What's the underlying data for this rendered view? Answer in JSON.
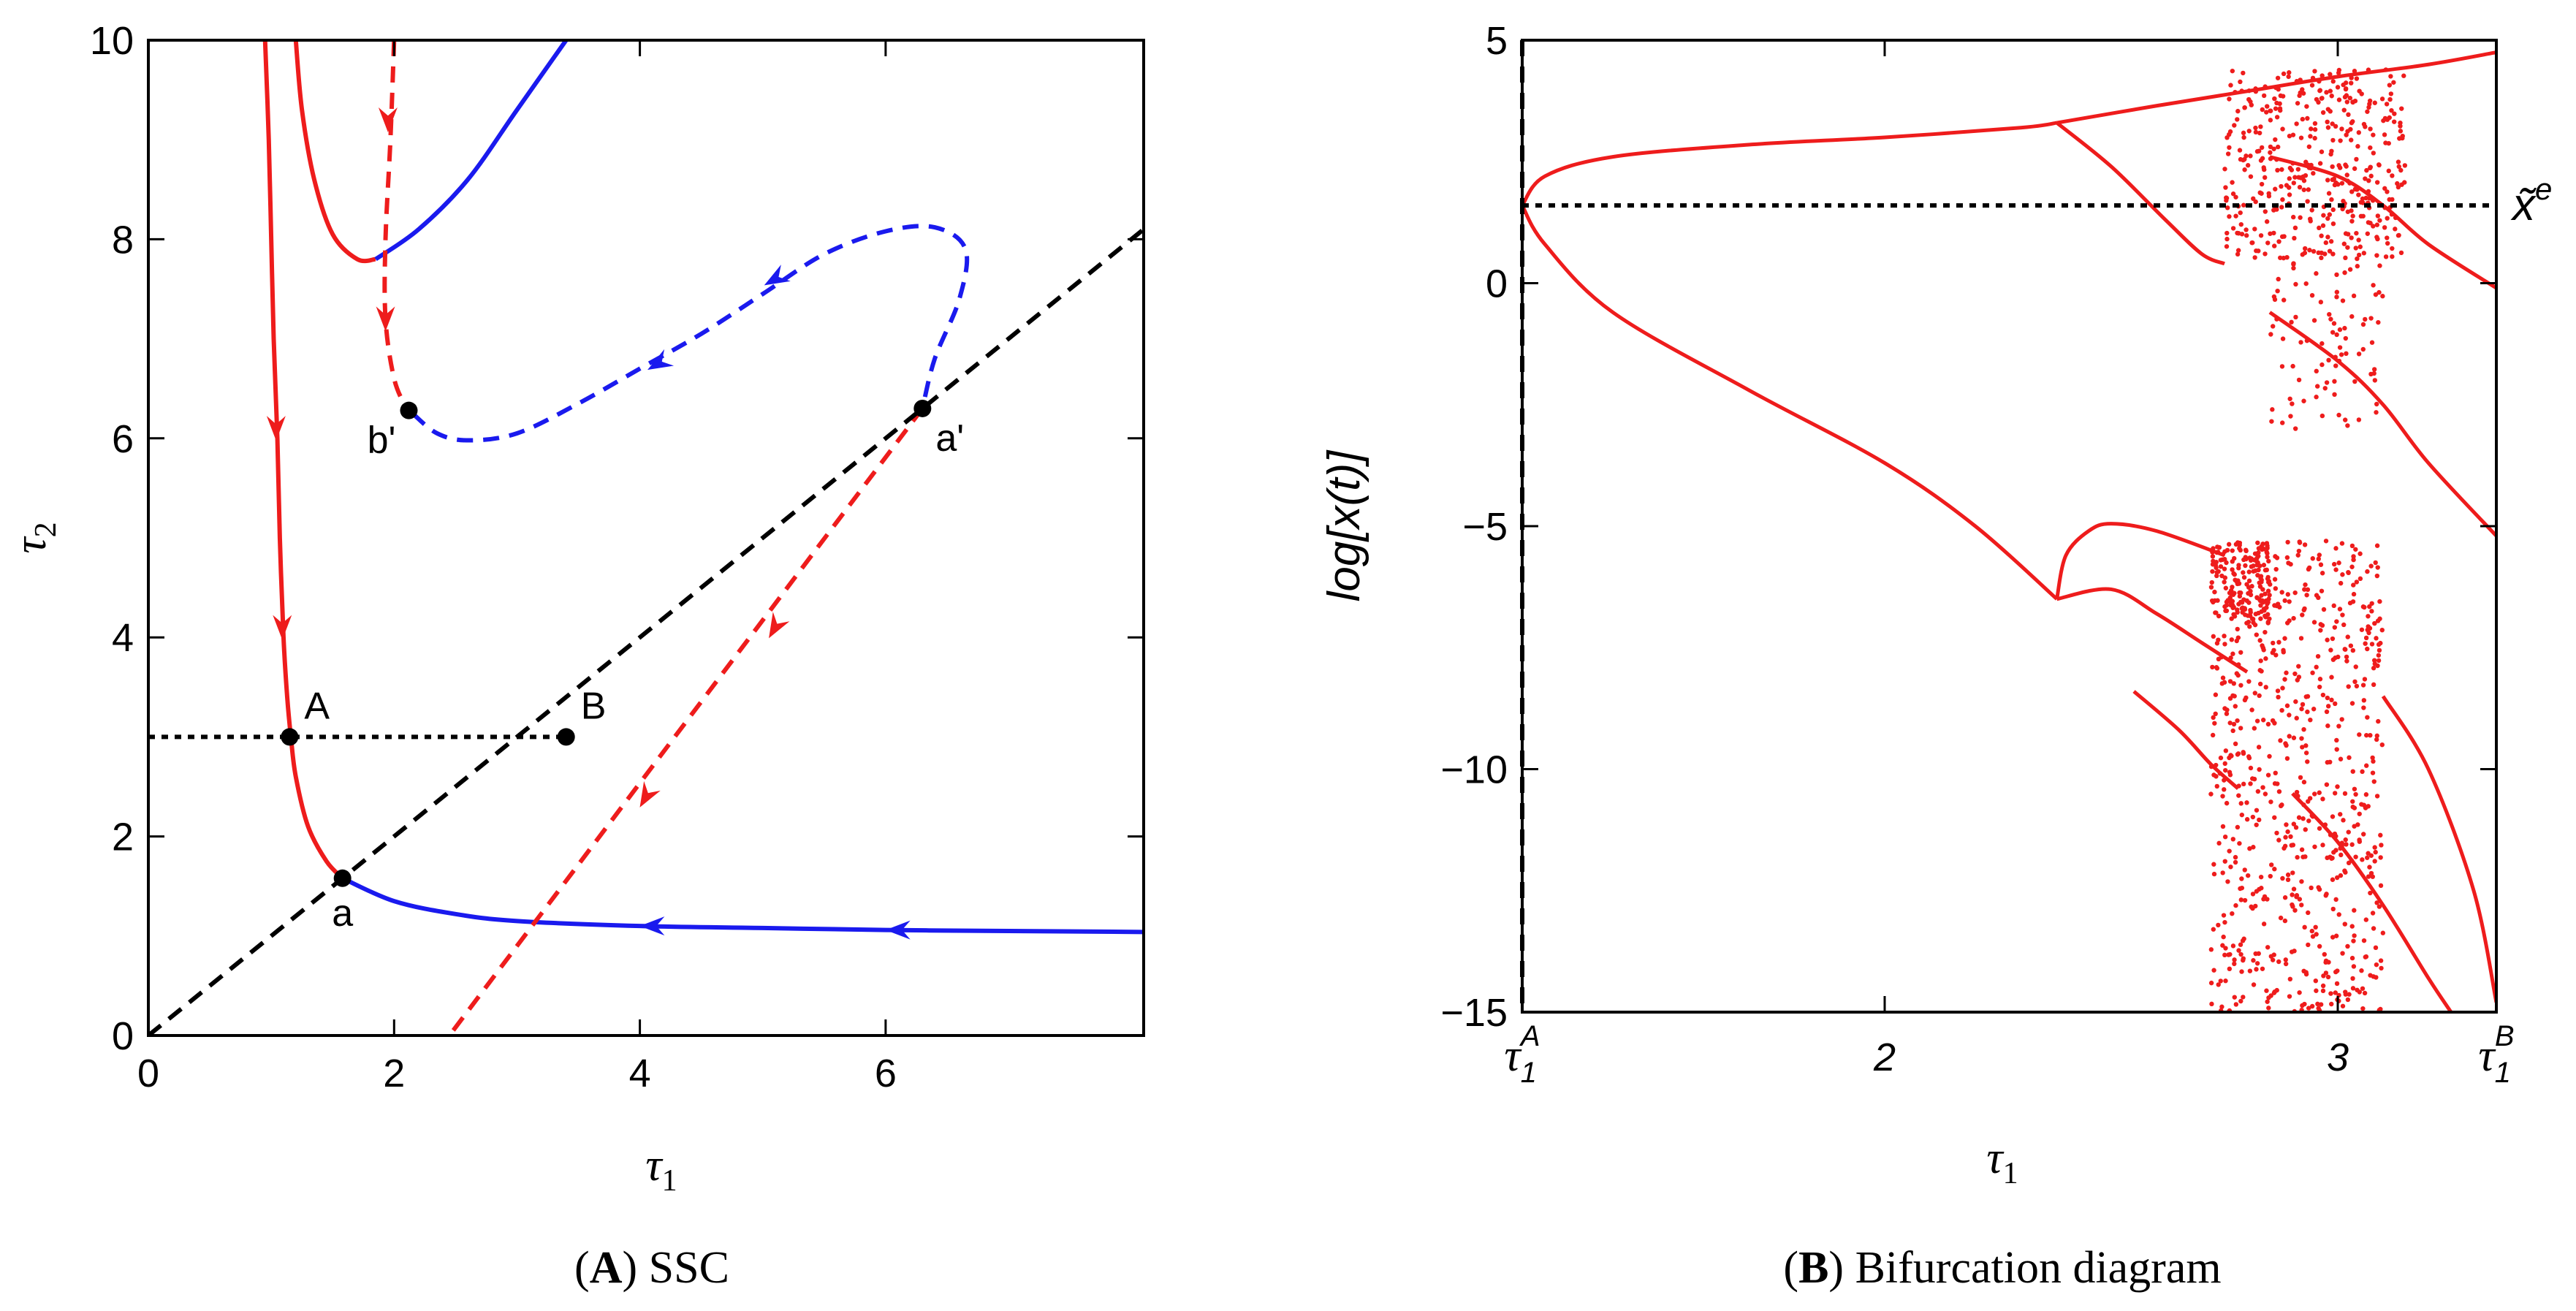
{
  "colors": {
    "red": "#ee1c1c",
    "blue": "#1a1aee",
    "black": "#000000"
  },
  "chart_data": [
    {
      "type": "line",
      "id": "A",
      "caption": {
        "letter": "A",
        "text": "SSC"
      },
      "xlabel": {
        "main": "τ",
        "sub": "1"
      },
      "ylabel": {
        "main": "τ",
        "sub": "2"
      },
      "xlim": [
        0,
        8.1
      ],
      "ylim": [
        0,
        10
      ],
      "xticks": [
        0,
        2,
        4,
        6
      ],
      "yticks": [
        0,
        2,
        4,
        6,
        8,
        10
      ],
      "series": [
        {
          "name": "red-solid-curve",
          "color": "red",
          "dash": "solid",
          "points": [
            [
              0.95,
              10
            ],
            [
              0.98,
              9
            ],
            [
              1.0,
              8
            ],
            [
              1.02,
              7
            ],
            [
              1.05,
              6
            ],
            [
              1.07,
              5
            ],
            [
              1.1,
              4
            ],
            [
              1.13,
              3.4
            ],
            [
              1.16,
              3
            ],
            [
              1.2,
              2.6
            ],
            [
              1.3,
              2.1
            ],
            [
              1.45,
              1.75
            ],
            [
              1.58,
              1.58
            ]
          ]
        },
        {
          "name": "red-solid-upper-curve",
          "color": "red",
          "dash": "solid",
          "points": [
            [
              1.2,
              10
            ],
            [
              1.25,
              9.3
            ],
            [
              1.35,
              8.6
            ],
            [
              1.5,
              8.05
            ],
            [
              1.7,
              7.8
            ],
            [
              1.85,
              7.8
            ]
          ]
        },
        {
          "name": "blue-solid-upper-curve",
          "color": "blue",
          "dash": "solid",
          "points": [
            [
              1.85,
              7.8
            ],
            [
              2.2,
              8.1
            ],
            [
              2.6,
              8.6
            ],
            [
              3.0,
              9.3
            ],
            [
              3.4,
              10
            ]
          ]
        },
        {
          "name": "blue-solid-lower-curve",
          "color": "blue",
          "dash": "solid",
          "points": [
            [
              1.58,
              1.58
            ],
            [
              2,
              1.35
            ],
            [
              2.5,
              1.22
            ],
            [
              3,
              1.15
            ],
            [
              4,
              1.1
            ],
            [
              5,
              1.08
            ],
            [
              6,
              1.06
            ],
            [
              7,
              1.05
            ],
            [
              8.1,
              1.04
            ]
          ]
        },
        {
          "name": "red-dashed-vertical",
          "color": "red",
          "dash": "dashed",
          "points": [
            [
              2.0,
              10
            ],
            [
              1.97,
              9
            ],
            [
              1.93,
              8
            ],
            [
              1.93,
              7.2
            ],
            [
              2.0,
              6.6
            ],
            [
              2.1,
              6.3
            ]
          ]
        },
        {
          "name": "blue-dashed-loop",
          "color": "blue",
          "dash": "dashed",
          "points": [
            [
              2.15,
              6.25
            ],
            [
              2.35,
              6.05
            ],
            [
              2.6,
              5.98
            ],
            [
              3,
              6.05
            ],
            [
              3.5,
              6.35
            ],
            [
              4,
              6.7
            ],
            [
              4.5,
              7.05
            ],
            [
              5,
              7.45
            ],
            [
              5.5,
              7.85
            ],
            [
              6,
              8.08
            ],
            [
              6.4,
              8.12
            ],
            [
              6.65,
              7.9
            ],
            [
              6.6,
              7.4
            ],
            [
              6.4,
              6.8
            ],
            [
              6.3,
              6.3
            ]
          ]
        },
        {
          "name": "red-dashed-diagonal",
          "color": "red",
          "dash": "dashed",
          "points": [
            [
              6.3,
              6.3
            ],
            [
              2.45,
              0
            ]
          ]
        },
        {
          "name": "black-dashed-diagonal",
          "color": "black",
          "dash": "dashed",
          "points": [
            [
              0,
              0
            ],
            [
              8.1,
              8.1
            ]
          ]
        },
        {
          "name": "black-dotted-horizontal",
          "color": "black",
          "dash": "dotted",
          "points": [
            [
              0,
              3
            ],
            [
              3.4,
              3
            ]
          ]
        }
      ],
      "arrows": [
        {
          "x": 1.04,
          "y": 6.1,
          "dir": "down",
          "color": "red"
        },
        {
          "x": 1.09,
          "y": 4.1,
          "dir": "down",
          "color": "red"
        },
        {
          "x": 1.95,
          "y": 9.2,
          "dir": "down",
          "color": "red"
        },
        {
          "x": 1.93,
          "y": 7.2,
          "dir": "down",
          "color": "red"
        },
        {
          "x": 5.1,
          "y": 7.6,
          "dir": "left-down",
          "color": "blue"
        },
        {
          "x": 4.15,
          "y": 6.75,
          "dir": "left-down",
          "color": "blue"
        },
        {
          "x": 5.1,
          "y": 4.1,
          "dir": "down-left",
          "color": "red"
        },
        {
          "x": 4.05,
          "y": 2.4,
          "dir": "down-left",
          "color": "red"
        },
        {
          "x": 4.1,
          "y": 1.1,
          "dir": "left",
          "color": "blue"
        },
        {
          "x": 6.1,
          "y": 1.06,
          "dir": "left",
          "color": "blue"
        }
      ],
      "points": [
        {
          "name": "A",
          "x": 1.15,
          "y": 3.0,
          "label": "A",
          "pos": "upper-right"
        },
        {
          "name": "B",
          "x": 3.4,
          "y": 3.0,
          "label": "B",
          "pos": "upper-right"
        },
        {
          "name": "a",
          "x": 1.58,
          "y": 1.58,
          "label": "a",
          "pos": "below"
        },
        {
          "name": "b-prime",
          "x": 2.12,
          "y": 6.28,
          "label": "b'",
          "pos": "lower-left"
        },
        {
          "name": "a-prime",
          "x": 6.3,
          "y": 6.3,
          "label": "a'",
          "pos": "lower-right"
        }
      ]
    },
    {
      "type": "scatter",
      "id": "B",
      "caption": {
        "letter": "B",
        "text": "Bifurcation diagram"
      },
      "xlabel": {
        "main": "τ",
        "sub": "1"
      },
      "ylabel": "log[x(t)]",
      "xlim": [
        1.2,
        3.35
      ],
      "ylim": [
        -15,
        5
      ],
      "xticks": [
        {
          "value": 1.2,
          "main": "τ",
          "sub": "1",
          "sup": "A"
        },
        {
          "value": 2,
          "label": "2"
        },
        {
          "value": 3,
          "label": "3"
        },
        {
          "value": 3.35,
          "main": "τ",
          "sub": "1",
          "sup": "B"
        }
      ],
      "yticks": [
        5,
        0,
        -5,
        -10,
        -15
      ],
      "reference_lines": [
        {
          "name": "x-tilde-e-line",
          "orientation": "horizontal",
          "y": 1.6,
          "label": "x̃",
          "sup": "e"
        },
        {
          "name": "tau1A-line",
          "orientation": "vertical",
          "x": 1.2
        }
      ],
      "branches": [
        {
          "name": "upper-branch",
          "points": [
            [
              1.2,
              1.6
            ],
            [
              1.25,
              2.2
            ],
            [
              1.4,
              2.6
            ],
            [
              1.7,
              2.85
            ],
            [
              2.0,
              3.0
            ],
            [
              2.3,
              3.2
            ],
            [
              2.38,
              3.3
            ]
          ]
        },
        {
          "name": "upper-branch-top",
          "points": [
            [
              2.38,
              3.3
            ],
            [
              2.6,
              3.65
            ],
            [
              2.8,
              3.95
            ],
            [
              3.0,
              4.25
            ],
            [
              3.2,
              4.5
            ],
            [
              3.35,
              4.75
            ]
          ]
        },
        {
          "name": "upper-branch-split",
          "points": [
            [
              2.38,
              3.3
            ],
            [
              2.5,
              2.4
            ],
            [
              2.62,
              1.3
            ],
            [
              2.7,
              0.6
            ],
            [
              2.75,
              0.4
            ]
          ]
        },
        {
          "name": "upper-branch-right",
          "points": [
            [
              2.85,
              2.6
            ],
            [
              3.0,
              2.2
            ],
            [
              3.1,
              1.6
            ],
            [
              3.2,
              0.8
            ],
            [
              3.35,
              -0.1
            ]
          ]
        },
        {
          "name": "mid-branch",
          "points": [
            [
              2.85,
              -0.6
            ],
            [
              3.0,
              -1.6
            ],
            [
              3.1,
              -2.5
            ],
            [
              3.2,
              -3.7
            ],
            [
              3.35,
              -5.2
            ]
          ]
        },
        {
          "name": "lower-branch",
          "points": [
            [
              1.2,
              1.6
            ],
            [
              1.25,
              0.8
            ],
            [
              1.4,
              -0.6
            ],
            [
              1.7,
              -2.2
            ],
            [
              2.0,
              -3.7
            ],
            [
              2.2,
              -5.0
            ],
            [
              2.38,
              -6.5
            ]
          ]
        },
        {
          "name": "lower-arc-top",
          "points": [
            [
              2.38,
              -6.5
            ],
            [
              2.4,
              -5.6
            ],
            [
              2.45,
              -5.1
            ],
            [
              2.5,
              -4.95
            ],
            [
              2.6,
              -5.1
            ],
            [
              2.75,
              -5.6
            ]
          ]
        },
        {
          "name": "lower-arc-mid",
          "points": [
            [
              2.38,
              -6.5
            ],
            [
              2.5,
              -6.3
            ],
            [
              2.6,
              -6.8
            ],
            [
              2.7,
              -7.4
            ],
            [
              2.8,
              -8.0
            ]
          ]
        },
        {
          "name": "lower-arc-bottom",
          "points": [
            [
              2.55,
              -8.4
            ],
            [
              2.65,
              -9.2
            ],
            [
              2.72,
              -9.9
            ],
            [
              2.78,
              -10.4
            ]
          ]
        },
        {
          "name": "lower-right-1",
          "points": [
            [
              2.9,
              -10.5
            ],
            [
              3.0,
              -11.5
            ],
            [
              3.1,
              -12.8
            ],
            [
              3.2,
              -14.3
            ],
            [
              3.25,
              -15
            ]
          ]
        },
        {
          "name": "lower-right-2",
          "points": [
            [
              3.1,
              -8.5
            ],
            [
              3.2,
              -10.0
            ],
            [
              3.3,
              -12.5
            ],
            [
              3.35,
              -14.8
            ]
          ]
        }
      ],
      "chaotic_regions": [
        {
          "name": "chaos-upper",
          "x_range": [
            2.75,
            3.15
          ],
          "y_range": [
            0.5,
            4.4
          ],
          "count": 420
        },
        {
          "name": "chaos-upper-sparse",
          "x_range": [
            2.85,
            3.1
          ],
          "y_range": [
            -3.0,
            0.5
          ],
          "count": 90
        },
        {
          "name": "chaos-lower",
          "x_range": [
            2.72,
            3.1
          ],
          "y_range": [
            -15.0,
            -5.3
          ],
          "count": 700
        },
        {
          "name": "chaos-lower-cluster",
          "x_range": [
            2.72,
            2.85
          ],
          "y_range": [
            -7.0,
            -5.3
          ],
          "count": 160
        }
      ]
    }
  ]
}
